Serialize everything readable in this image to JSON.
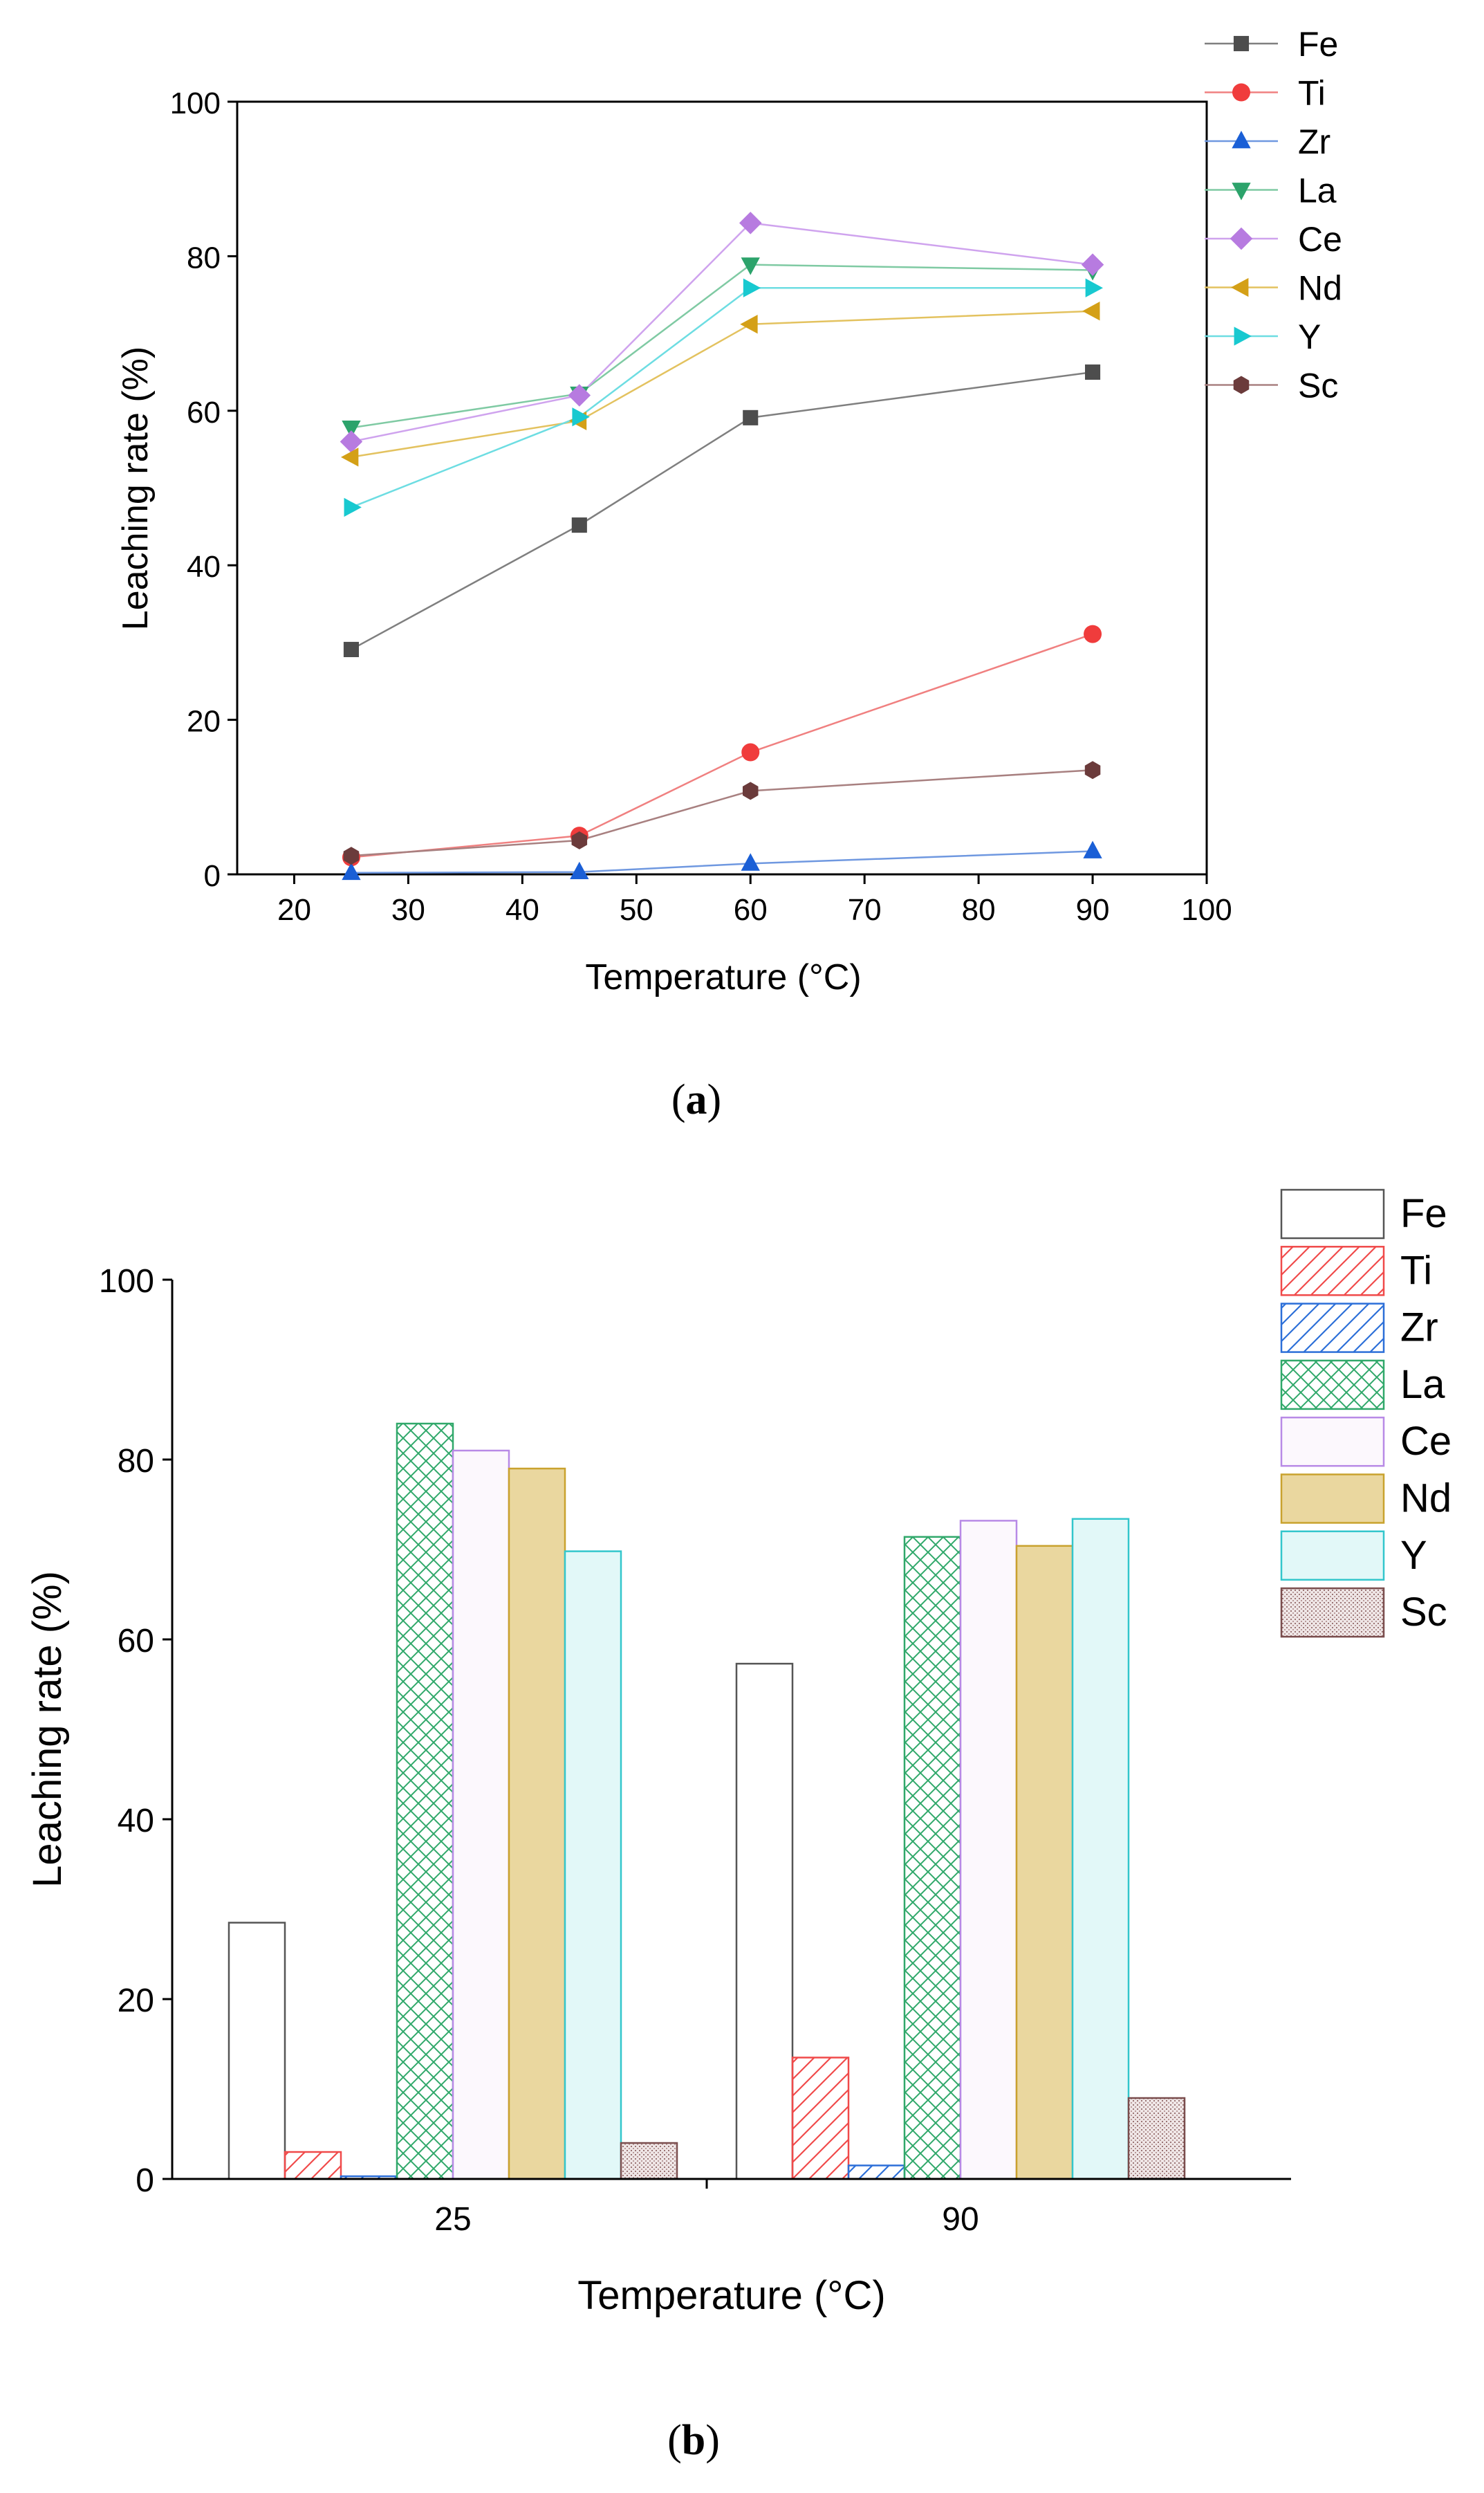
{
  "chart_data": [
    {
      "type": "line",
      "panel_label": "a",
      "title": "",
      "xlabel": "Temperature (°C)",
      "ylabel": "Leaching rate (%)",
      "xlim": [
        15,
        100
      ],
      "ylim": [
        0,
        100
      ],
      "xticks": [
        20,
        30,
        40,
        50,
        60,
        70,
        80,
        90,
        100
      ],
      "yticks": [
        0,
        20,
        40,
        60,
        80,
        100
      ],
      "x": [
        25,
        45,
        60,
        90
      ],
      "legend_position": "top-right, outside",
      "series": [
        {
          "name": "Fe",
          "marker": "square",
          "color": "#4d4d4d",
          "line_color": "#7f7f7f",
          "values": [
            29.1,
            45.2,
            59.1,
            65.0
          ]
        },
        {
          "name": "Ti",
          "marker": "circle",
          "color": "#f03c3c",
          "line_color": "#f08080",
          "values": [
            2.2,
            5.0,
            15.8,
            31.1
          ]
        },
        {
          "name": "Zr",
          "marker": "triangle-up",
          "color": "#1a5fd6",
          "line_color": "#6f98e0",
          "values": [
            0.2,
            0.3,
            1.4,
            3.0
          ]
        },
        {
          "name": "La",
          "marker": "triangle-down",
          "color": "#2ca36b",
          "line_color": "#7fcaa3",
          "values": [
            57.8,
            62.2,
            78.9,
            78.2
          ]
        },
        {
          "name": "Ce",
          "marker": "diamond",
          "color": "#b77be0",
          "line_color": "#cfa3ee",
          "values": [
            56.0,
            62.0,
            84.3,
            78.9
          ]
        },
        {
          "name": "Nd",
          "marker": "triangle-left",
          "color": "#d4a017",
          "line_color": "#e3c25f",
          "values": [
            54.0,
            58.7,
            71.2,
            72.9
          ]
        },
        {
          "name": "Y",
          "marker": "triangle-right",
          "color": "#18c9d0",
          "line_color": "#6ddde2",
          "values": [
            47.5,
            59.2,
            75.9,
            75.9
          ]
        },
        {
          "name": "Sc",
          "marker": "hexagon",
          "color": "#6b3b3b",
          "line_color": "#a88080",
          "values": [
            2.4,
            4.4,
            10.8,
            13.5
          ]
        }
      ]
    },
    {
      "type": "bar",
      "panel_label": "b",
      "title": "",
      "xlabel": "Temperature (°C)",
      "ylabel": "Leaching rate (%)",
      "ylim": [
        0,
        100
      ],
      "yticks": [
        0,
        20,
        40,
        60,
        80,
        100
      ],
      "categories": [
        "25",
        "90"
      ],
      "legend_position": "top-right, outside",
      "series": [
        {
          "name": "Fe",
          "pattern": "none",
          "fill": "#ffffff",
          "stroke": "#555555",
          "values": [
            28.5,
            57.3
          ]
        },
        {
          "name": "Ti",
          "pattern": "diagonal-hatch",
          "fill": "#ffffff",
          "stroke": "#f04a4a",
          "values": [
            3.0,
            13.5
          ]
        },
        {
          "name": "Zr",
          "pattern": "diagonal-hatch",
          "fill": "#ffffff",
          "stroke": "#2c6fd8",
          "values": [
            0.3,
            1.5
          ]
        },
        {
          "name": "La",
          "pattern": "cross-hatch",
          "fill": "#ffffff",
          "stroke": "#30a86a",
          "values": [
            84.0,
            71.4
          ]
        },
        {
          "name": "Ce",
          "pattern": "solid",
          "fill": "#fcf8fd",
          "stroke": "#b88ae6",
          "values": [
            81.0,
            73.2
          ]
        },
        {
          "name": "Nd",
          "pattern": "solid",
          "fill": "#ead79f",
          "stroke": "#c9a22e",
          "values": [
            79.0,
            70.4
          ]
        },
        {
          "name": "Y",
          "pattern": "solid",
          "fill": "#e2f8f8",
          "stroke": "#33c6cc",
          "values": [
            69.8,
            73.4
          ]
        },
        {
          "name": "Sc",
          "pattern": "stipple",
          "fill": "#e7dcdc",
          "stroke": "#7a4d4d",
          "values": [
            4.0,
            9.0
          ]
        }
      ]
    }
  ]
}
